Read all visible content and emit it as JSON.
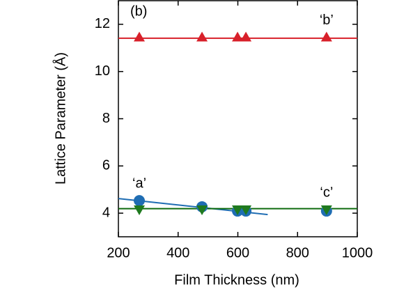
{
  "chart_data": {
    "type": "scatter",
    "annotation": "(b)",
    "xlabel": "Film Thickness (nm)",
    "ylabel": "Lattice Parameter (Å)",
    "xlim": [
      200,
      1000
    ],
    "xticks": [
      200,
      400,
      600,
      800,
      1000
    ],
    "ylim": [
      3,
      13
    ],
    "yticks": [
      4,
      6,
      8,
      10,
      12
    ],
    "series": [
      {
        "name": "‘a’",
        "color": "#1f6db3",
        "marker": "circle",
        "x": [
          270,
          480,
          599,
          627,
          897
        ],
        "values": [
          4.53,
          4.27,
          4.09,
          4.09,
          4.09
        ]
      },
      {
        "name": "‘b’",
        "color": "#d8202a",
        "marker": "triangle-up",
        "x": [
          270,
          480,
          599,
          627,
          897
        ],
        "values": [
          11.45,
          11.45,
          11.45,
          11.45,
          11.45
        ]
      },
      {
        "name": "‘c’",
        "color": "#1f7a1f",
        "marker": "triangle-down",
        "x": [
          270,
          480,
          599,
          627,
          897
        ],
        "values": [
          4.15,
          4.15,
          4.15,
          4.15,
          4.15
        ]
      }
    ],
    "fit_lines": [
      {
        "color": "#1f6db3",
        "x": [
          200,
          700
        ],
        "values": [
          4.62,
          3.94
        ]
      },
      {
        "color": "#d8202a",
        "x": [
          200,
          1000
        ],
        "values": [
          11.41,
          11.41
        ]
      },
      {
        "color": "#0d6b0d",
        "x": [
          200,
          1000
        ],
        "values": [
          4.19,
          4.19
        ]
      }
    ]
  }
}
